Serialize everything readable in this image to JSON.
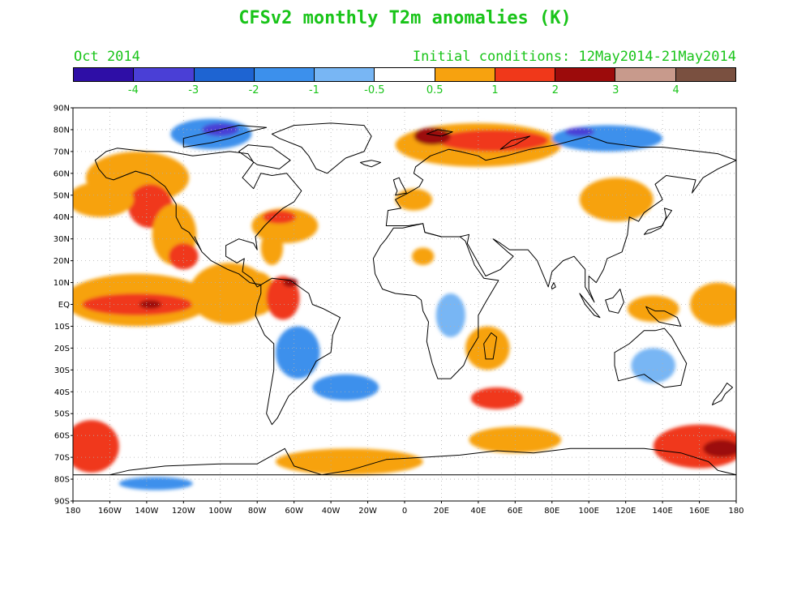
{
  "title": "CFSv2 monthly T2m anomalies (K)",
  "valid_month": "Oct 2014",
  "initial_conditions": "Initial conditions: 12May2014-21May2014",
  "colors": {
    "title_text": "#19c419",
    "land_outline": "#000000",
    "grid": "#b0b0b0"
  },
  "colorbar": {
    "colors": [
      "#2e0ea6",
      "#4a3fd6",
      "#1e64d2",
      "#3c90ec",
      "#78b6f4",
      "#ffffff",
      "#f7a20f",
      "#f0381a",
      "#9c0b0b",
      "#c89a8c",
      "#7a5040"
    ],
    "labels": [
      "-4",
      "-3",
      "-2",
      "-1",
      "-0.5",
      "0.5",
      "1",
      "2",
      "3",
      "4"
    ]
  },
  "axes": {
    "lat_labels": [
      "90N",
      "80N",
      "70N",
      "60N",
      "50N",
      "40N",
      "30N",
      "20N",
      "10N",
      "EQ",
      "10S",
      "20S",
      "30S",
      "40S",
      "50S",
      "60S",
      "70S",
      "80S",
      "90S"
    ],
    "lon_labels": [
      "180",
      "160W",
      "140W",
      "120W",
      "100W",
      "80W",
      "60W",
      "40W",
      "20W",
      "0",
      "20E",
      "40E",
      "60E",
      "80E",
      "100E",
      "120E",
      "140E",
      "160E",
      "180"
    ]
  },
  "map_data": {
    "type": "filled-contour-map",
    "variable": "T2m anomaly",
    "units": "K",
    "extent": {
      "lon": [
        -180,
        180
      ],
      "lat": [
        -90,
        90
      ]
    },
    "anomaly_regions": [
      {
        "lon": -145,
        "lat": 58,
        "rx": 28,
        "ry": 12,
        "v": 0.7
      },
      {
        "lon": -138,
        "lat": 45,
        "rx": 12,
        "ry": 10,
        "v": 1.2
      },
      {
        "lon": -165,
        "lat": 48,
        "rx": 18,
        "ry": 8,
        "v": 0.6
      },
      {
        "lon": -125,
        "lat": 32,
        "rx": 12,
        "ry": 14,
        "v": 0.7
      },
      {
        "lon": -120,
        "lat": 22,
        "rx": 8,
        "ry": 6,
        "v": 1.1
      },
      {
        "lon": -145,
        "lat": 2,
        "rx": 40,
        "ry": 12,
        "v": 0.7
      },
      {
        "lon": -145,
        "lat": 0,
        "rx": 30,
        "ry": 5,
        "v": 1.4
      },
      {
        "lon": -138,
        "lat": 0,
        "rx": 6,
        "ry": 2,
        "v": 2.3
      },
      {
        "lon": -95,
        "lat": 5,
        "rx": 22,
        "ry": 14,
        "v": 0.7
      },
      {
        "lon": -80,
        "lat": 5,
        "rx": 10,
        "ry": 10,
        "v": 0.6
      },
      {
        "lon": -66,
        "lat": 3,
        "rx": 9,
        "ry": 10,
        "v": 1.2
      },
      {
        "lon": -62,
        "lat": 10,
        "rx": 4,
        "ry": 2,
        "v": 2.2
      },
      {
        "lon": -65,
        "lat": 36,
        "rx": 18,
        "ry": 8,
        "v": 0.7
      },
      {
        "lon": -68,
        "lat": 40,
        "rx": 9,
        "ry": 3,
        "v": 1.2
      },
      {
        "lon": -72,
        "lat": 26,
        "rx": 6,
        "ry": 8,
        "v": 0.6
      },
      {
        "lon": 40,
        "lat": 73,
        "rx": 45,
        "ry": 10,
        "v": 0.7
      },
      {
        "lon": 48,
        "lat": 75,
        "rx": 30,
        "ry": 5,
        "v": 1.4
      },
      {
        "lon": 15,
        "lat": 77,
        "rx": 10,
        "ry": 4,
        "v": 2.2
      },
      {
        "lon": 115,
        "lat": 48,
        "rx": 20,
        "ry": 10,
        "v": 0.6
      },
      {
        "lon": 5,
        "lat": 48,
        "rx": 10,
        "ry": 5,
        "v": 0.6
      },
      {
        "lon": 10,
        "lat": 22,
        "rx": 6,
        "ry": 4,
        "v": 0.6
      },
      {
        "lon": 50,
        "lat": -43,
        "rx": 14,
        "ry": 5,
        "v": 1.2
      },
      {
        "lon": 45,
        "lat": -20,
        "rx": 12,
        "ry": 10,
        "v": 0.6
      },
      {
        "lon": 135,
        "lat": -2,
        "rx": 14,
        "ry": 6,
        "v": 0.7
      },
      {
        "lon": 170,
        "lat": 0,
        "rx": 15,
        "ry": 10,
        "v": 0.7
      },
      {
        "lon": -170,
        "lat": -65,
        "rx": 15,
        "ry": 12,
        "v": 1.4
      },
      {
        "lon": 160,
        "lat": -65,
        "rx": 25,
        "ry": 10,
        "v": 1.4
      },
      {
        "lon": 172,
        "lat": -66,
        "rx": 10,
        "ry": 4,
        "v": 2.2
      },
      {
        "lon": 60,
        "lat": -62,
        "rx": 25,
        "ry": 6,
        "v": 0.7
      },
      {
        "lon": -30,
        "lat": -72,
        "rx": 40,
        "ry": 6,
        "v": 0.7
      },
      {
        "lon": -105,
        "lat": 78,
        "rx": 22,
        "ry": 7,
        "v": -1.5
      },
      {
        "lon": -100,
        "lat": 80,
        "rx": 10,
        "ry": 3,
        "v": -3.2
      },
      {
        "lon": 110,
        "lat": 76,
        "rx": 30,
        "ry": 6,
        "v": -1.5
      },
      {
        "lon": 95,
        "lat": 79,
        "rx": 8,
        "ry": 2,
        "v": -3.2
      },
      {
        "lon": -58,
        "lat": -22,
        "rx": 12,
        "ry": 12,
        "v": -1.2
      },
      {
        "lon": -32,
        "lat": -38,
        "rx": 18,
        "ry": 6,
        "v": -1.2
      },
      {
        "lon": 25,
        "lat": -5,
        "rx": 8,
        "ry": 10,
        "v": -0.7
      },
      {
        "lon": 135,
        "lat": -28,
        "rx": 12,
        "ry": 8,
        "v": -0.7
      },
      {
        "lon": -135,
        "lat": -82,
        "rx": 20,
        "ry": 3,
        "v": -1.2
      }
    ]
  }
}
